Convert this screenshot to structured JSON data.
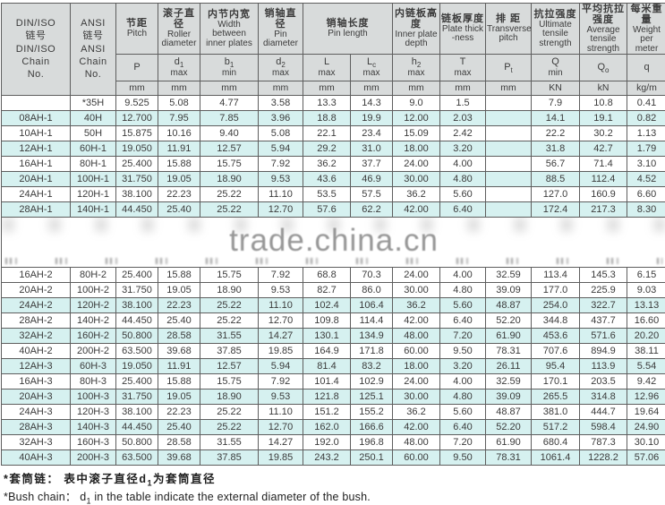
{
  "watermark": {
    "text": "trade.china.cn"
  },
  "colors": {
    "row_shade": "#d6f1f0",
    "header_bg": "#d8dbdb",
    "border": "#5e5e5e",
    "watermark_text": "#979797"
  },
  "header": {
    "din_iso": "DIN/ISO\n链号\nDIN/ISO\nChain\nNo.",
    "ansi": "ANSI\n链号\nANSI\nChain\nNo.",
    "groups": [
      {
        "zh": "节距",
        "en": "Pitch",
        "span": 1
      },
      {
        "zh": "滚子直径",
        "en": "Roller diameter",
        "span": 1
      },
      {
        "zh": "内节内宽",
        "en": "Width between inner plates",
        "span": 1
      },
      {
        "zh": "销轴直径",
        "en": "Pin diameter",
        "span": 1
      },
      {
        "zh": "销轴长度",
        "en": "Pin length",
        "span": 2
      },
      {
        "zh": "内链板高度",
        "en": "Inner plate depth",
        "span": 1
      },
      {
        "zh": "链板厚度",
        "en": "Plate thick -ness",
        "span": 1
      },
      {
        "zh": "排  距",
        "en": "Transverse pitch",
        "span": 1
      },
      {
        "zh": "抗拉强度",
        "en": "Ultimate tensile strength",
        "span": 1
      },
      {
        "zh": "平均抗拉强度",
        "en": "Average tensile strength",
        "span": 1
      },
      {
        "zh": "每米重量",
        "en": "Weight per meter",
        "span": 1
      }
    ],
    "symbols": [
      {
        "base": "P",
        "sub": "",
        "suf": ""
      },
      {
        "base": "d",
        "sub": "1",
        "suf": "max"
      },
      {
        "base": "b",
        "sub": "1",
        "suf": "min"
      },
      {
        "base": "d",
        "sub": "2",
        "suf": "max"
      },
      {
        "base": "L",
        "sub": "",
        "suf": "max"
      },
      {
        "base": "L",
        "sub": "c",
        "suf": "max"
      },
      {
        "base": "h",
        "sub": "2",
        "suf": "max"
      },
      {
        "base": "T",
        "sub": "",
        "suf": "max"
      },
      {
        "base": "P",
        "sub": "t",
        "suf": ""
      },
      {
        "base": "Q",
        "sub": "",
        "suf": "min"
      },
      {
        "base": "Q",
        "sub": "o",
        "suf": ""
      },
      {
        "base": "q",
        "sub": "",
        "suf": ""
      }
    ],
    "units": [
      "mm",
      "mm",
      "mm",
      "mm",
      "mm",
      "mm",
      "mm",
      "mm",
      "mm",
      "KN",
      "kN",
      "kg/m"
    ]
  },
  "rows_a": [
    {
      "din": "",
      "ansi": "*35H",
      "shade": false,
      "vals": [
        "9.525",
        "5.08",
        "4.77",
        "3.58",
        "13.3",
        "14.3",
        "9.0",
        "1.5",
        "",
        "7.9",
        "10.8",
        "0.41"
      ]
    },
    {
      "din": "08AH-1",
      "ansi": "40H",
      "shade": true,
      "vals": [
        "12.700",
        "7.95",
        "7.85",
        "3.96",
        "18.8",
        "19.9",
        "12.00",
        "2.03",
        "",
        "14.1",
        "19.1",
        "0.82"
      ]
    },
    {
      "din": "10AH-1",
      "ansi": "50H",
      "shade": false,
      "vals": [
        "15.875",
        "10.16",
        "9.40",
        "5.08",
        "22.1",
        "23.4",
        "15.09",
        "2.42",
        "",
        "22.2",
        "30.2",
        "1.13"
      ]
    },
    {
      "din": "12AH-1",
      "ansi": "60H-1",
      "shade": true,
      "vals": [
        "19.050",
        "11.91",
        "12.57",
        "5.94",
        "29.2",
        "31.0",
        "18.00",
        "3.20",
        "",
        "31.8",
        "42.7",
        "1.79"
      ]
    },
    {
      "din": "16AH-1",
      "ansi": "80H-1",
      "shade": false,
      "vals": [
        "25.400",
        "15.88",
        "15.75",
        "7.92",
        "36.2",
        "37.7",
        "24.00",
        "4.00",
        "",
        "56.7",
        "71.4",
        "3.10"
      ]
    },
    {
      "din": "20AH-1",
      "ansi": "100H-1",
      "shade": true,
      "vals": [
        "31.750",
        "19.05",
        "18.90",
        "9.53",
        "43.6",
        "46.9",
        "30.00",
        "4.80",
        "",
        "88.5",
        "112.4",
        "4.52"
      ]
    },
    {
      "din": "24AH-1",
      "ansi": "120H-1",
      "shade": false,
      "vals": [
        "38.100",
        "22.23",
        "25.22",
        "11.10",
        "53.5",
        "57.5",
        "36.2",
        "5.60",
        "",
        "127.0",
        "160.9",
        "6.60"
      ]
    },
    {
      "din": "28AH-1",
      "ansi": "140H-1",
      "shade": true,
      "vals": [
        "44.450",
        "25.40",
        "25.22",
        "12.70",
        "57.6",
        "62.2",
        "42.00",
        "6.40",
        "",
        "172.4",
        "217.3",
        "8.30"
      ]
    }
  ],
  "rows_b": [
    {
      "din": "16AH-2",
      "ansi": "80H-2",
      "shade": false,
      "vals": [
        "25.400",
        "15.88",
        "15.75",
        "7.92",
        "68.8",
        "70.3",
        "24.00",
        "4.00",
        "32.59",
        "113.4",
        "145.3",
        "6.15"
      ]
    },
    {
      "din": "20AH-2",
      "ansi": "100H-2",
      "shade": false,
      "vals": [
        "31.750",
        "19.05",
        "18.90",
        "9.53",
        "82.7",
        "86.0",
        "30.00",
        "4.80",
        "39.09",
        "177.0",
        "225.9",
        "9.03"
      ]
    },
    {
      "din": "24AH-2",
      "ansi": "120H-2",
      "shade": true,
      "vals": [
        "38.100",
        "22.23",
        "25.22",
        "11.10",
        "102.4",
        "106.4",
        "36.2",
        "5.60",
        "48.87",
        "254.0",
        "322.7",
        "13.13"
      ]
    },
    {
      "din": "28AH-2",
      "ansi": "140H-2",
      "shade": false,
      "vals": [
        "44.450",
        "25.40",
        "25.22",
        "12.70",
        "109.8",
        "114.4",
        "42.00",
        "6.40",
        "52.20",
        "344.8",
        "437.7",
        "16.60"
      ]
    },
    {
      "din": "32AH-2",
      "ansi": "160H-2",
      "shade": true,
      "vals": [
        "50.800",
        "28.58",
        "31.55",
        "14.27",
        "130.1",
        "134.9",
        "48.00",
        "7.20",
        "61.90",
        "453.6",
        "571.6",
        "20.20"
      ]
    },
    {
      "din": "40AH-2",
      "ansi": "200H-2",
      "shade": false,
      "vals": [
        "63.500",
        "39.68",
        "37.85",
        "19.85",
        "164.9",
        "171.8",
        "60.00",
        "9.50",
        "78.31",
        "707.6",
        "894.9",
        "38.11"
      ]
    },
    {
      "din": "12AH-3",
      "ansi": "60H-3",
      "shade": true,
      "vals": [
        "19.050",
        "11.91",
        "12.57",
        "5.94",
        "81.4",
        "83.2",
        "18.00",
        "3.20",
        "26.11",
        "95.4",
        "113.9",
        "5.54"
      ]
    },
    {
      "din": "16AH-3",
      "ansi": "80H-3",
      "shade": false,
      "vals": [
        "25.400",
        "15.88",
        "15.75",
        "7.92",
        "101.4",
        "102.9",
        "24.00",
        "4.00",
        "32.59",
        "170.1",
        "203.5",
        "9.42"
      ]
    },
    {
      "din": "20AH-3",
      "ansi": "100H-3",
      "shade": true,
      "vals": [
        "31.750",
        "19.05",
        "18.90",
        "9.53",
        "121.8",
        "125.1",
        "30.00",
        "4.80",
        "39.09",
        "265.5",
        "314.8",
        "12.96"
      ]
    },
    {
      "din": "24AH-3",
      "ansi": "120H-3",
      "shade": false,
      "vals": [
        "38.100",
        "22.23",
        "25.22",
        "11.10",
        "151.2",
        "155.2",
        "36.2",
        "5.60",
        "48.87",
        "381.0",
        "444.7",
        "19.64"
      ]
    },
    {
      "din": "28AH-3",
      "ansi": "140H-3",
      "shade": true,
      "vals": [
        "44.450",
        "25.40",
        "25.22",
        "12.70",
        "162.0",
        "166.6",
        "42.00",
        "6.40",
        "52.20",
        "517.2",
        "598.4",
        "24.90"
      ]
    },
    {
      "din": "32AH-3",
      "ansi": "160H-3",
      "shade": false,
      "vals": [
        "50.800",
        "28.58",
        "31.55",
        "14.27",
        "192.0",
        "196.8",
        "48.00",
        "7.20",
        "61.90",
        "680.4",
        "787.3",
        "30.10"
      ]
    },
    {
      "din": "40AH-3",
      "ansi": "200H-3",
      "shade": true,
      "vals": [
        "63.500",
        "39.68",
        "37.85",
        "19.85",
        "243.2",
        "250.1",
        "60.00",
        "9.50",
        "78.31",
        "1061.4",
        "1228.2",
        "57.06"
      ]
    }
  ],
  "footnote": {
    "zh_pre": "*套筒链： 表中滚子直径d",
    "zh_sub": "1",
    "zh_post": "为套筒直径",
    "en_pre": "*Bush chain： d",
    "en_sub": "1",
    "en_post": " in the table indicate the external diameter of the bush."
  }
}
